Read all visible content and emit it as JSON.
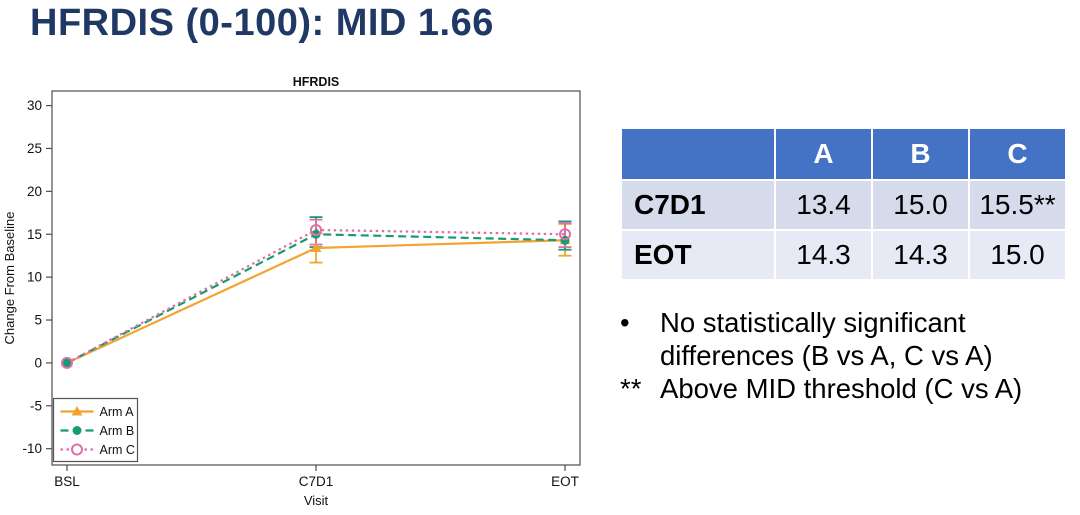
{
  "slide": {
    "title": "HFRDIS (0-100): MID 1.66",
    "title_color": "#1F3864"
  },
  "chart_data": {
    "type": "line",
    "title": "HFRDIS",
    "xlabel": "Visit",
    "ylabel": "Change From Baseline",
    "categories": [
      "BSL",
      "C7D1",
      "EOT"
    ],
    "ylim": [
      -11.9,
      31.7
    ],
    "yticks": [
      -10,
      -5,
      0,
      5,
      10,
      15,
      20,
      25,
      30
    ],
    "grid": false,
    "legend_position": "bottom-left",
    "series": [
      {
        "name": "Arm A",
        "color": "#F2A430",
        "line_style": "solid",
        "marker": "triangle",
        "values": [
          0,
          13.4,
          14.3
        ],
        "err_low": [
          0,
          1.7,
          1.8
        ],
        "err_high": [
          0,
          1.7,
          1.9
        ]
      },
      {
        "name": "Arm B",
        "color": "#149D74",
        "line_style": "dashed",
        "marker": "circle",
        "values": [
          0,
          15.0,
          14.3
        ],
        "err_low": [
          0,
          1.5,
          1.1
        ],
        "err_high": [
          0,
          2.0,
          2.2
        ]
      },
      {
        "name": "Arm C",
        "color": "#DE6FA8",
        "line_style": "dotted",
        "marker": "open-circle",
        "values": [
          0,
          15.5,
          15.0
        ],
        "err_low": [
          0,
          1.7,
          1.5
        ],
        "err_high": [
          0,
          1.2,
          1.3
        ]
      }
    ]
  },
  "table": {
    "columns": [
      "",
      "A",
      "B",
      "C"
    ],
    "rows": [
      {
        "label": "C7D1",
        "values": [
          "13.4",
          "15.0",
          "15.5**"
        ]
      },
      {
        "label": "EOT",
        "values": [
          "14.3",
          "14.3",
          "15.0"
        ]
      }
    ],
    "header_bg": "#4472C4",
    "band1_bg": "#D6DBEC",
    "band2_bg": "#E7E9F4"
  },
  "notes": {
    "bullet_marker": "•",
    "bullet1_line1": "No statistically significant",
    "bullet1_line2": "differences (B vs A, C vs A)",
    "footnote_marker": "**",
    "footnote_text": "Above MID threshold (C vs A)"
  }
}
